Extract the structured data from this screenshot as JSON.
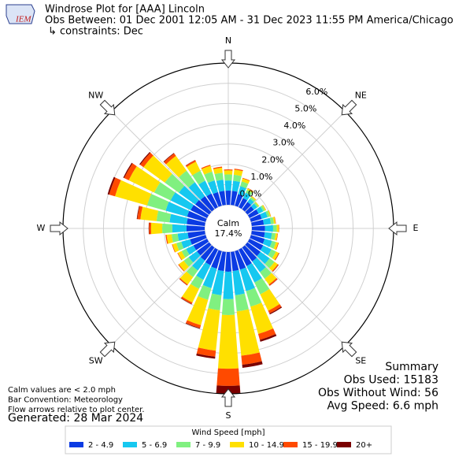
{
  "chart_data": {
    "type": "windrose",
    "title": "Windrose Plot for [AAA] Lincoln",
    "subtitle": "Obs Between: 01 Dec 2001 12:05 AM - 31 Dec 2023 11:55 PM America/Chicago",
    "constraints": "↳ constraints: Dec",
    "logo": "IEM",
    "calm_label": "Calm",
    "calm_value": "17.4%",
    "directions": [
      0,
      10,
      20,
      30,
      40,
      50,
      60,
      70,
      80,
      90,
      100,
      110,
      120,
      130,
      140,
      150,
      160,
      170,
      180,
      190,
      200,
      210,
      220,
      230,
      240,
      250,
      260,
      270,
      280,
      290,
      300,
      310,
      320,
      330,
      340,
      350
    ],
    "ylim": [
      0,
      7.0
    ],
    "yticks": [
      {
        "value": 0,
        "label": "0.0%"
      },
      {
        "value": 1,
        "label": "1.0%"
      },
      {
        "value": 2,
        "label": "2.0%"
      },
      {
        "value": 3,
        "label": "3.0%"
      },
      {
        "value": 4,
        "label": "4.0%"
      },
      {
        "value": 5,
        "label": "5.0%"
      },
      {
        "value": 6,
        "label": "6.0%"
      }
    ],
    "theta_ticks": [
      {
        "value": 0,
        "label": "N"
      },
      {
        "value": 45,
        "label": "NE"
      },
      {
        "value": 90,
        "label": "E"
      },
      {
        "value": 135,
        "label": "SE"
      },
      {
        "value": 180,
        "label": "S"
      },
      {
        "value": 225,
        "label": "SW"
      },
      {
        "value": 270,
        "label": "W"
      },
      {
        "value": 315,
        "label": "NW"
      }
    ],
    "legend_title": "Wind Speed [mph]",
    "series": [
      {
        "name": "2 - 4.9",
        "color": "#0b3be3",
        "values": [
          0.7,
          0.7,
          0.6,
          0.5,
          0.45,
          0.4,
          0.5,
          0.55,
          0.6,
          0.65,
          0.65,
          0.7,
          0.75,
          0.8,
          0.85,
          0.9,
          0.95,
          0.95,
          0.97,
          0.95,
          0.9,
          0.85,
          0.8,
          0.75,
          0.75,
          0.8,
          0.85,
          0.9,
          0.9,
          0.95,
          0.9,
          0.85,
          0.8,
          0.75,
          0.7,
          0.7
        ]
      },
      {
        "name": "5 - 6.9",
        "color": "#16c8f0",
        "values": [
          0.5,
          0.5,
          0.4,
          0.3,
          0.2,
          0.2,
          0.25,
          0.3,
          0.35,
          0.4,
          0.35,
          0.38,
          0.45,
          0.55,
          0.65,
          0.9,
          1.1,
          1.2,
          1.36,
          1.2,
          1.0,
          0.8,
          0.6,
          0.5,
          0.4,
          0.45,
          0.5,
          0.7,
          0.85,
          1.1,
          1.1,
          1.0,
          0.85,
          0.7,
          0.6,
          0.55
        ]
      },
      {
        "name": "7 - 9.9",
        "color": "#80f080",
        "values": [
          0.3,
          0.3,
          0.25,
          0.15,
          0.1,
          0.08,
          0.1,
          0.12,
          0.15,
          0.18,
          0.18,
          0.2,
          0.25,
          0.3,
          0.4,
          0.65,
          0.8,
          0.8,
          0.78,
          0.75,
          0.6,
          0.5,
          0.4,
          0.3,
          0.25,
          0.25,
          0.3,
          0.5,
          0.65,
          0.95,
          0.9,
          0.85,
          0.7,
          0.55,
          0.45,
          0.35
        ]
      },
      {
        "name": "10 - 14.9",
        "color": "#ffe000",
        "values": [
          0.2,
          0.25,
          0.15,
          0.08,
          0.05,
          0.04,
          0.05,
          0.05,
          0.08,
          0.1,
          0.1,
          0.12,
          0.15,
          0.2,
          0.35,
          0.9,
          1.4,
          2.2,
          2.65,
          2.0,
          1.3,
          0.75,
          0.45,
          0.3,
          0.2,
          0.2,
          0.25,
          0.55,
          0.8,
          1.65,
          1.4,
          1.3,
          0.9,
          0.5,
          0.3,
          0.25
        ]
      },
      {
        "name": "15 - 19.9",
        "color": "#ff4a00",
        "values": [
          0.05,
          0.05,
          0.03,
          0.02,
          0.01,
          0,
          0.01,
          0.01,
          0.02,
          0.02,
          0.02,
          0.03,
          0.03,
          0.05,
          0.07,
          0.15,
          0.3,
          0.45,
          0.85,
          0.3,
          0.15,
          0.08,
          0.05,
          0.04,
          0.03,
          0.03,
          0.05,
          0.1,
          0.15,
          0.3,
          0.25,
          0.2,
          0.15,
          0.08,
          0.05,
          0.05
        ]
      },
      {
        "name": "20+",
        "color": "#7a0000",
        "values": [
          0,
          0,
          0,
          0,
          0,
          0,
          0,
          0,
          0,
          0,
          0,
          0,
          0.01,
          0.01,
          0.01,
          0.05,
          0.1,
          0.15,
          0.39,
          0.1,
          0.03,
          0.02,
          0.01,
          0,
          0,
          0,
          0,
          0.02,
          0.03,
          0.08,
          0.05,
          0.05,
          0.03,
          0.01,
          0,
          0
        ]
      }
    ],
    "summary": [
      "Summary",
      "Obs Used: 15183",
      "Obs Without Wind: 56",
      "Avg Speed: 6.6 mph"
    ],
    "notes": [
      "Calm values are < 2.0 mph",
      "Bar Convention: Meteorology",
      "Flow arrows relative to plot center."
    ],
    "generated": "Generated: 28 Mar 2024"
  }
}
